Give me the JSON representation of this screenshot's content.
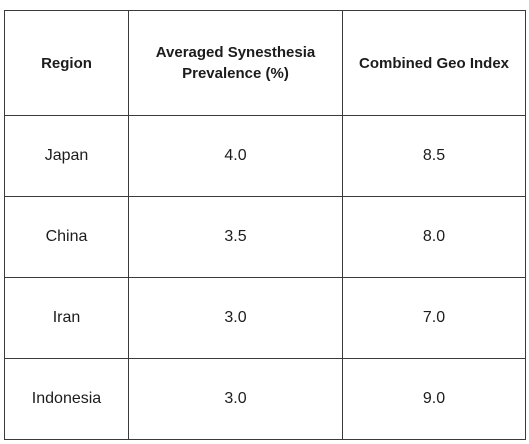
{
  "chart_data": {
    "type": "table",
    "columns": [
      "Region",
      "Averaged Synesthesia Prevalence (%)",
      "Combined Geo Index"
    ],
    "rows": [
      [
        "Japan",
        "4.0",
        "8.5"
      ],
      [
        "China",
        "3.5",
        "8.0"
      ],
      [
        "Iran",
        "3.0",
        "7.0"
      ],
      [
        "Indonesia",
        "3.0",
        "9.0"
      ]
    ]
  }
}
